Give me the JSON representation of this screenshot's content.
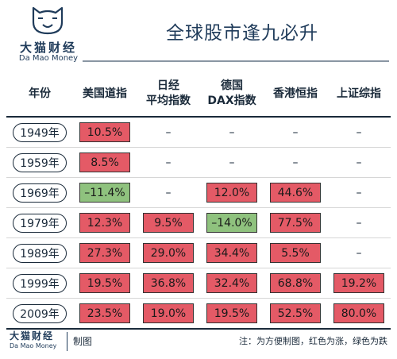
{
  "brand": {
    "name_cn": "大猫财经",
    "name_en": "Da Mao Money"
  },
  "title": "全球股市逢九必升",
  "table": {
    "headers": [
      {
        "lines": [
          "年份"
        ]
      },
      {
        "lines": [
          "美国道指"
        ]
      },
      {
        "lines": [
          "日经",
          "平均指数"
        ]
      },
      {
        "lines": [
          "德国",
          "DAX指数"
        ]
      },
      {
        "lines": [
          "香港恒指"
        ]
      },
      {
        "lines": [
          "上证综指"
        ]
      }
    ],
    "rows": [
      {
        "year": "1949年",
        "cells": [
          {
            "text": "10.5%",
            "trend": "up"
          },
          {
            "text": "–",
            "trend": "none"
          },
          {
            "text": "–",
            "trend": "none"
          },
          {
            "text": "–",
            "trend": "none"
          },
          {
            "text": "–",
            "trend": "none"
          }
        ]
      },
      {
        "year": "1959年",
        "cells": [
          {
            "text": "8.5%",
            "trend": "up"
          },
          {
            "text": "–",
            "trend": "none"
          },
          {
            "text": "–",
            "trend": "none"
          },
          {
            "text": "–",
            "trend": "none"
          },
          {
            "text": "–",
            "trend": "none"
          }
        ]
      },
      {
        "year": "1969年",
        "cells": [
          {
            "text": "–11.4%",
            "trend": "down"
          },
          {
            "text": "–",
            "trend": "none"
          },
          {
            "text": "12.0%",
            "trend": "up"
          },
          {
            "text": "44.6%",
            "trend": "up"
          },
          {
            "text": "–",
            "trend": "none"
          }
        ]
      },
      {
        "year": "1979年",
        "cells": [
          {
            "text": "12.3%",
            "trend": "up"
          },
          {
            "text": "9.5%",
            "trend": "up"
          },
          {
            "text": "–14.0%",
            "trend": "down"
          },
          {
            "text": "77.5%",
            "trend": "up"
          },
          {
            "text": "–",
            "trend": "none"
          }
        ]
      },
      {
        "year": "1989年",
        "cells": [
          {
            "text": "27.3%",
            "trend": "up"
          },
          {
            "text": "29.0%",
            "trend": "up"
          },
          {
            "text": "34.4%",
            "trend": "up"
          },
          {
            "text": "5.5%",
            "trend": "up"
          },
          {
            "text": "–",
            "trend": "none"
          }
        ]
      },
      {
        "year": "1999年",
        "cells": [
          {
            "text": "19.5%",
            "trend": "up"
          },
          {
            "text": "36.8%",
            "trend": "up"
          },
          {
            "text": "32.4%",
            "trend": "up"
          },
          {
            "text": "68.8%",
            "trend": "up"
          },
          {
            "text": "19.2%",
            "trend": "up"
          }
        ]
      },
      {
        "year": "2009年",
        "cells": [
          {
            "text": "23.5%",
            "trend": "up"
          },
          {
            "text": "19.0%",
            "trend": "up"
          },
          {
            "text": "19.5%",
            "trend": "up"
          },
          {
            "text": "52.5%",
            "trend": "up"
          },
          {
            "text": "80.0%",
            "trend": "up"
          }
        ]
      }
    ]
  },
  "footer": {
    "made_by": "制图",
    "note": "注：为方便制图，红色为涨，绿色为跌"
  },
  "colors": {
    "up": "#e45a66",
    "down": "#8fc27e",
    "brand": "#1f3b5a"
  },
  "icons": {
    "logo": "cat-face-icon"
  }
}
